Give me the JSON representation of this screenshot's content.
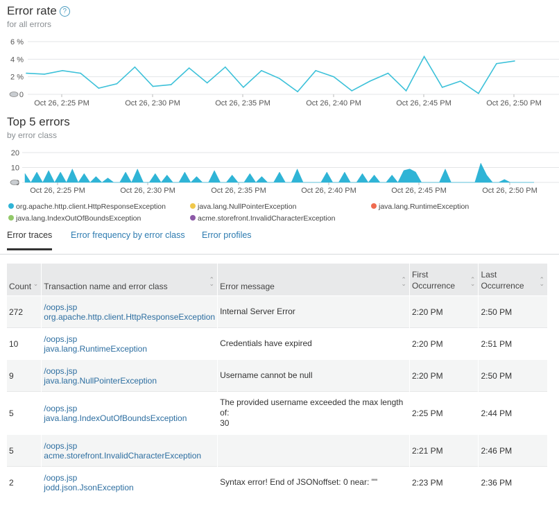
{
  "error_rate": {
    "title": "Error rate",
    "subtitle": "for all errors",
    "y_ticks": [
      "6 %",
      "4 %",
      "2 %",
      "0"
    ],
    "x_ticks": [
      "Oct 26, 2:25 PM",
      "Oct 26, 2:30 PM",
      "Oct 26, 2:35 PM",
      "Oct 26, 2:40 PM",
      "Oct 26, 2:45 PM",
      "Oct 26, 2:50 PM"
    ],
    "line_color": "#3cc1d9"
  },
  "top_errors": {
    "title": "Top 5 errors",
    "subtitle": "by error class",
    "y_ticks": [
      "20",
      "10",
      "0"
    ],
    "x_ticks": [
      "Oct 26, 2:25 PM",
      "Oct 26, 2:30 PM",
      "Oct 26, 2:35 PM",
      "Oct 26, 2:40 PM",
      "Oct 26, 2:45 PM",
      "Oct 26, 2:50 PM"
    ]
  },
  "legend": [
    {
      "label": "org.apache.http.client.HttpResponseException",
      "color": "#2fb4d6"
    },
    {
      "label": "java.lang.NullPointerException",
      "color": "#f0c84b"
    },
    {
      "label": "java.lang.RuntimeException",
      "color": "#ef6b50"
    },
    {
      "label": "java.lang.IndexOutOfBoundsException",
      "color": "#93c96a"
    },
    {
      "label": "acme.storefront.InvalidCharacterException",
      "color": "#8c59a7"
    }
  ],
  "tabs": [
    "Error traces",
    "Error frequency by error class",
    "Error profiles"
  ],
  "table": {
    "headers": {
      "count": "Count",
      "transaction": "Transaction name and error class",
      "message": "Error message",
      "first": "First Occurrence",
      "last": "Last Occurrence"
    },
    "rows": [
      {
        "count": "272",
        "transaction": "/oops.jsp",
        "error_class": "org.apache.http.client.HttpResponseException",
        "message": "Internal Server Error",
        "first": "2:20 PM",
        "last": "2:50 PM"
      },
      {
        "count": "10",
        "transaction": "/oops.jsp",
        "error_class": "java.lang.RuntimeException",
        "message": "Credentials have expired",
        "first": "2:20 PM",
        "last": "2:51 PM"
      },
      {
        "count": "9",
        "transaction": "/oops.jsp",
        "error_class": "java.lang.NullPointerException",
        "message": "Username cannot be null",
        "first": "2:20 PM",
        "last": "2:50 PM"
      },
      {
        "count": "5",
        "transaction": "/oops.jsp",
        "error_class": "java.lang.IndexOutOfBoundsException",
        "message": "The provided username exceeded the max length of:\n30",
        "first": "2:25 PM",
        "last": "2:44 PM"
      },
      {
        "count": "5",
        "transaction": "/oops.jsp",
        "error_class": "acme.storefront.InvalidCharacterException",
        "message": "",
        "first": "2:21 PM",
        "last": "2:46 PM"
      },
      {
        "count": "2",
        "transaction": "/oops.jsp",
        "error_class": "jodd.json.JsonException",
        "message": "Syntax error! End of JSONoffset: 0 near: \"\"",
        "first": "2:23 PM",
        "last": "2:36 PM"
      }
    ]
  },
  "chart_data": [
    {
      "type": "line",
      "title": "Error rate",
      "subtitle": "for all errors",
      "ylim": [
        0,
        6
      ],
      "y_unit": "%",
      "x_ticks": [
        "Oct 26, 2:25 PM",
        "Oct 26, 2:30 PM",
        "Oct 26, 2:35 PM",
        "Oct 26, 2:40 PM",
        "Oct 26, 2:45 PM",
        "Oct 26, 2:50 PM"
      ],
      "series": [
        {
          "color": "#3cc1d9",
          "values": [
            2.4,
            2.3,
            2.7,
            2.4,
            0.7,
            1.2,
            3.1,
            0.9,
            1.1,
            3.0,
            1.3,
            3.1,
            0.8,
            2.7,
            1.8,
            0.3,
            2.7,
            2.0,
            0.4,
            1.5,
            2.4,
            0.4,
            4.3,
            0.8,
            1.5,
            0.1,
            3.5,
            3.8
          ]
        }
      ]
    },
    {
      "type": "area",
      "title": "Top 5 errors",
      "subtitle": "by error class",
      "ylim": [
        0,
        20
      ],
      "x_ticks": [
        "Oct 26, 2:25 PM",
        "Oct 26, 2:30 PM",
        "Oct 26, 2:35 PM",
        "Oct 26, 2:40 PM",
        "Oct 26, 2:45 PM",
        "Oct 26, 2:50 PM"
      ],
      "series": [
        {
          "name": "org.apache.http.client.HttpResponseException",
          "color": "#2fb4d6",
          "values": [
            6,
            0,
            7,
            0,
            8,
            0,
            7,
            0,
            9,
            0,
            6,
            0,
            4,
            0,
            3,
            0,
            0,
            7,
            0,
            9,
            0,
            0,
            6,
            0,
            5,
            0,
            0,
            7,
            0,
            4,
            0,
            0,
            8,
            0,
            0,
            5,
            0,
            0,
            6,
            0,
            4,
            0,
            0,
            7,
            0,
            0,
            9,
            0,
            0,
            0,
            0,
            7,
            0,
            0,
            7,
            0,
            0,
            6,
            0,
            5,
            0,
            0,
            5,
            0,
            8,
            9,
            7,
            0,
            0,
            0,
            0,
            9,
            0,
            0,
            0,
            0,
            0,
            13,
            5,
            0,
            0,
            2,
            0,
            0,
            0,
            0,
            0
          ]
        }
      ]
    }
  ]
}
